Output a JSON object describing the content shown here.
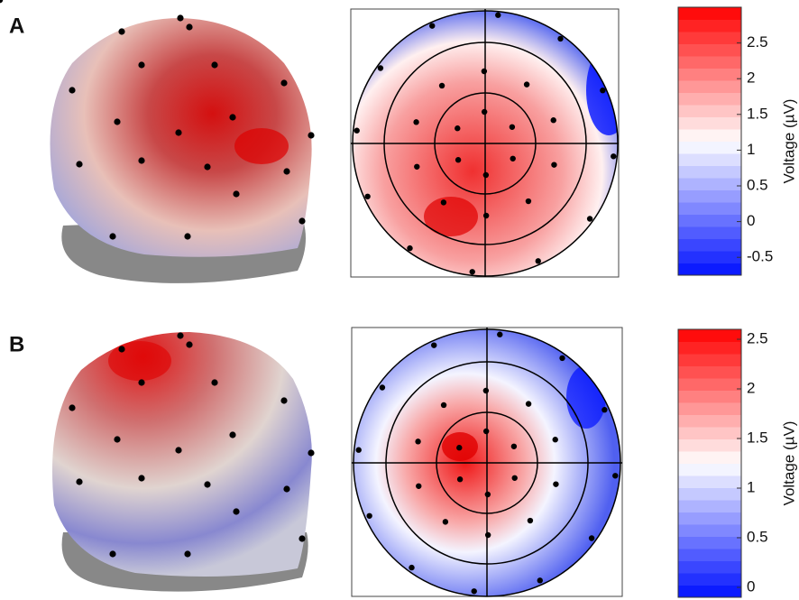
{
  "chart_data": [
    {
      "type": "colorbar",
      "label": "A",
      "ylabel": "Voltage (µV)",
      "ylim": [
        -0.75,
        3.0
      ],
      "yticks": [
        -0.5,
        0,
        0.5,
        1,
        1.5,
        2,
        2.5
      ],
      "colors": [
        "#0010ff",
        "#ffffff",
        "#ff0000"
      ]
    },
    {
      "type": "colorbar",
      "label": "B",
      "ylabel": "Voltage (µV)",
      "ylim": [
        -0.1,
        2.6
      ],
      "yticks": [
        0,
        0.5,
        1,
        1.5,
        2,
        2.5
      ],
      "colors": [
        "#0010ff",
        "#ffffff",
        "#ff0000"
      ]
    }
  ]
}
